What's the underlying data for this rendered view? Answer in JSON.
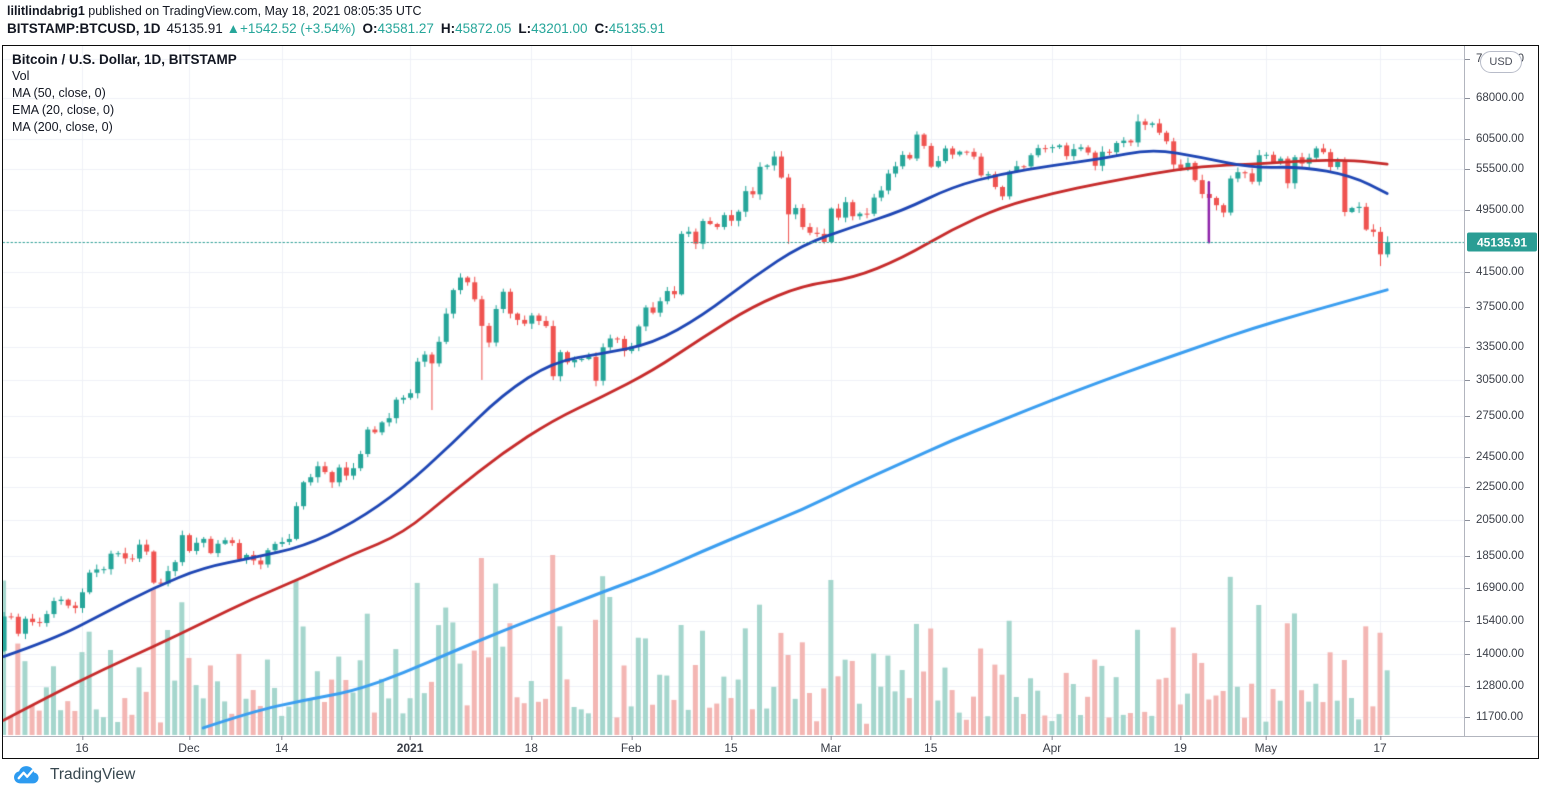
{
  "header": {
    "username": "lilitlindabrig1",
    "published": " published on TradingView.com, May 18, 2021 08:05:35 UTC",
    "symbol_interval": "BITSTAMP:BTCUSD, 1D",
    "last": "45135.91",
    "arrow": "▲",
    "change": "+1542.52 (+3.54%)",
    "o_label": "O:",
    "o_value": "43581.27",
    "h_label": "H:",
    "h_value": "45872.05",
    "l_label": "L:",
    "l_value": "43201.00",
    "c_label": "C:",
    "c_value": "45135.91"
  },
  "legend": {
    "title": "Bitcoin / U.S. Dollar, 1D, BITSTAMP",
    "items": [
      "Vol",
      "MA (50, close, 0)",
      "EMA (20, close, 0)",
      "MA (200, close, 0)"
    ]
  },
  "price_axis": {
    "currency_label": "USD",
    "labels": [
      "76000.00",
      "68000.00",
      "60500.00",
      "55500.00",
      "49500.00",
      "41500.00",
      "37500.00",
      "33500.00",
      "30500.00",
      "27500.00",
      "24500.00",
      "22500.00",
      "20500.00",
      "18500.00",
      "16900.00",
      "15400.00",
      "14000.00",
      "12800.00",
      "11700.00"
    ],
    "price_label": "45135.91"
  },
  "time_axis": {
    "ticks": [
      {
        "label": "16",
        "day": 12
      },
      {
        "label": "Dec",
        "day": 27
      },
      {
        "label": "14",
        "day": 40
      },
      {
        "label": "2021",
        "day": 58,
        "bold": true
      },
      {
        "label": "18",
        "day": 75
      },
      {
        "label": "Feb",
        "day": 89
      },
      {
        "label": "15",
        "day": 103
      },
      {
        "label": "Mar",
        "day": 117
      },
      {
        "label": "15",
        "day": 131
      },
      {
        "label": "Apr",
        "day": 148
      },
      {
        "label": "19",
        "day": 166
      },
      {
        "label": "May",
        "day": 178
      },
      {
        "label": "17",
        "day": 194
      }
    ]
  },
  "footer": {
    "brand": "TradingView"
  },
  "chart_data": {
    "type": "candlestick",
    "title": "Bitcoin / U.S. Dollar, 1D, BITSTAMP",
    "exchange": "BITSTAMP",
    "interval": "1D",
    "scale": "log",
    "start_date": "2020-11-04",
    "ylim": [
      11700,
      76000
    ],
    "y_axis_ticks": [
      76000,
      68000,
      60500,
      55500,
      49500,
      41500,
      37500,
      33500,
      30500,
      27500,
      24500,
      22500,
      20500,
      18500,
      16900,
      15400,
      14000,
      12800,
      11700
    ],
    "price_line": 45135.91,
    "closes": [
      14133,
      15579,
      15565,
      14833,
      15479,
      15332,
      15290,
      15684,
      16276,
      16339,
      16068,
      15955,
      16685,
      17645,
      17804,
      17817,
      18621,
      18642,
      18370,
      18365,
      19107,
      18732,
      17150,
      17108,
      17719,
      18177,
      19625,
      18764,
      19205,
      19421,
      18650,
      19154,
      19345,
      19191,
      18321,
      18553,
      18264,
      18058,
      18803,
      19144,
      19246,
      19417,
      21310,
      22805,
      23137,
      23869,
      23477,
      22803,
      23783,
      23241,
      23735,
      24712,
      26493,
      26281,
      27036,
      27362,
      28840,
      28996,
      29374,
      32127,
      32782,
      31971,
      33992,
      36824,
      39371,
      40797,
      40254,
      38356,
      35566,
      33922,
      37316,
      39187,
      36825,
      36178,
      35791,
      36630,
      36069,
      35547,
      30825,
      33005,
      32067,
      32289,
      32366,
      32569,
      30432,
      33466,
      34316,
      34269,
      33114,
      33537,
      35510,
      37472,
      36926,
      38144,
      39266,
      38903,
      46196,
      46481,
      44918,
      47909,
      47504,
      47105,
      48717,
      47945,
      49199,
      52149,
      51679,
      55888,
      56099,
      57539,
      54207,
      48824,
      49705,
      47093,
      46339,
      46188,
      45137,
      49631,
      48378,
      50538,
      48561,
      48927,
      48912,
      51206,
      52246,
      54824,
      55963,
      57805,
      57221,
      61243,
      59302,
      55907,
      56804,
      58870,
      57858,
      58346,
      58313,
      57523,
      54529,
      54738,
      52774,
      51383,
      55137,
      55973,
      55950,
      57750,
      58930,
      58918,
      59095,
      59384,
      57604,
      58758,
      59057,
      58192,
      56048,
      58323,
      58245,
      59793,
      60204,
      59890,
      63575,
      62959,
      63216,
      61572,
      60080,
      56250,
      55696,
      56508,
      53808,
      51731,
      51153,
      50110,
      49075,
      54056,
      55036,
      54858,
      53568,
      57750,
      57828,
      56631,
      57200,
      53333,
      57424,
      56396,
      57352,
      58877,
      58250,
      55847,
      56714,
      49150,
      49716,
      49880,
      46760,
      46456,
      43580,
      45135.91
    ],
    "last_candle_ohlc": {
      "o": 43581.27,
      "h": 45872.05,
      "l": 43201.0,
      "c": 45135.91
    },
    "wick_overrides": {
      "61": {
        "low": 28000
      },
      "68": {
        "low": 30500
      },
      "109": {
        "high": 58400
      },
      "111": {
        "low": 44900
      },
      "129": {
        "high": 61800
      },
      "160": {
        "high": 64850
      },
      "194": {
        "low": 42150
      }
    },
    "volume_overrides": {
      "24": 105,
      "68": 177,
      "86": 138,
      "96": 110,
      "111": 80,
      "189": 75
    },
    "series": [
      {
        "name": "MA (50, close, 0)",
        "color": "#c62b2b",
        "points": [
          [
            1,
            11600
          ],
          [
            8,
            12500
          ],
          [
            15,
            13400
          ],
          [
            22,
            14300
          ],
          [
            29,
            15300
          ],
          [
            36,
            16400
          ],
          [
            43,
            17400
          ],
          [
            50,
            18600
          ],
          [
            57,
            19700
          ],
          [
            64,
            22200
          ],
          [
            71,
            24800
          ],
          [
            78,
            27200
          ],
          [
            85,
            29100
          ],
          [
            92,
            31300
          ],
          [
            99,
            34400
          ],
          [
            106,
            37600
          ],
          [
            113,
            39900
          ],
          [
            120,
            40700
          ],
          [
            127,
            43100
          ],
          [
            134,
            46800
          ],
          [
            141,
            49900
          ],
          [
            148,
            51800
          ],
          [
            155,
            53400
          ],
          [
            162,
            54800
          ],
          [
            169,
            56000
          ],
          [
            176,
            56300
          ],
          [
            183,
            56800
          ],
          [
            190,
            57000
          ],
          [
            195,
            56300
          ]
        ]
      },
      {
        "name": "EMA (20, close, 0)",
        "color": "#1e46b4",
        "points": [
          [
            1,
            13900
          ],
          [
            8,
            14600
          ],
          [
            15,
            15700
          ],
          [
            22,
            16900
          ],
          [
            29,
            17900
          ],
          [
            36,
            18400
          ],
          [
            43,
            19000
          ],
          [
            50,
            20300
          ],
          [
            57,
            22400
          ],
          [
            64,
            25500
          ],
          [
            71,
            29300
          ],
          [
            78,
            32100
          ],
          [
            85,
            32900
          ],
          [
            92,
            33800
          ],
          [
            99,
            36600
          ],
          [
            106,
            40800
          ],
          [
            113,
            44800
          ],
          [
            120,
            47100
          ],
          [
            127,
            49300
          ],
          [
            134,
            52800
          ],
          [
            141,
            54800
          ],
          [
            148,
            56100
          ],
          [
            155,
            57200
          ],
          [
            162,
            58800
          ],
          [
            169,
            57400
          ],
          [
            176,
            55700
          ],
          [
            183,
            55900
          ],
          [
            190,
            54500
          ],
          [
            195,
            51800
          ]
        ]
      },
      {
        "name": "MA (200, close, 0)",
        "color": "#3b9ef0",
        "points": [
          [
            29,
            11350
          ],
          [
            36,
            11900
          ],
          [
            43,
            12270
          ],
          [
            50,
            12600
          ],
          [
            57,
            13250
          ],
          [
            64,
            14100
          ],
          [
            71,
            14950
          ],
          [
            78,
            15800
          ],
          [
            85,
            16700
          ],
          [
            92,
            17600
          ],
          [
            99,
            18750
          ],
          [
            106,
            19900
          ],
          [
            113,
            21100
          ],
          [
            120,
            22600
          ],
          [
            127,
            24100
          ],
          [
            134,
            25700
          ],
          [
            141,
            27200
          ],
          [
            148,
            28800
          ],
          [
            155,
            30400
          ],
          [
            162,
            32000
          ],
          [
            169,
            33600
          ],
          [
            176,
            35300
          ],
          [
            183,
            36800
          ],
          [
            190,
            38300
          ],
          [
            195,
            39400
          ]
        ]
      }
    ],
    "drawings": [
      {
        "type": "vertical-segment",
        "day": 170,
        "price_from": 45100,
        "price_to": 53500,
        "color": "#8e24aa"
      }
    ],
    "colors": {
      "up": "#26a69a",
      "down": "#ef5350",
      "vol_up": "#a5d6cd",
      "vol_down": "#f3b6b3",
      "price_line": "#2a9d94",
      "badge": "#2a9d94",
      "grid": "#eff1f7"
    }
  }
}
